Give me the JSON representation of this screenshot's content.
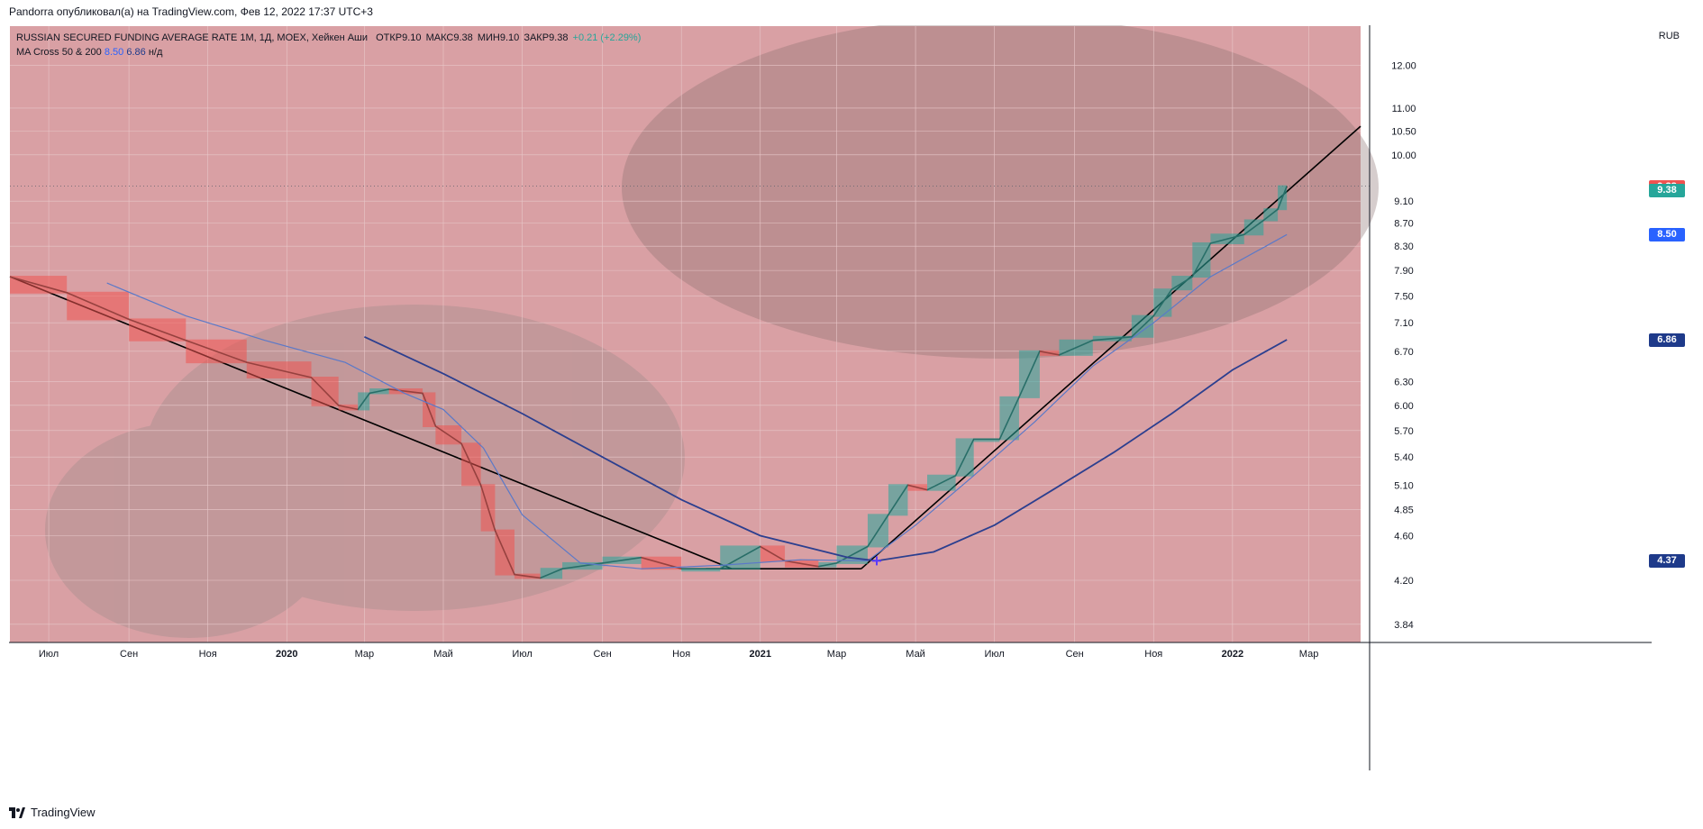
{
  "caption": "Pandorra опубликовал(а) на TradingView.com, Фев 12, 2022 17:37 UTC+3",
  "legend": {
    "symbol_line": "RUSSIAN SECURED FUNDING AVERAGE RATE 1M, 1Д, MOEX, Хейкен Аши",
    "open_label": "ОТКР",
    "open_value": "9.10",
    "high_label": "МАКС",
    "high_value": "9.38",
    "low_label": "МИН",
    "low_value": "9.10",
    "close_label": "ЗАКР",
    "close_value": "9.38",
    "change": "+0.21 (+2.29%)",
    "ma_name": "MA Cross 50 & 200",
    "ma_fast_value": "8.50",
    "ma_slow_value": "6.86",
    "ma_na": "н/д"
  },
  "axis_currency": "RUB",
  "price_tags": [
    {
      "label": "9.38",
      "value": 9.38,
      "color": "#ef5350"
    },
    {
      "label": "9.38",
      "value": 9.3,
      "color": "#26a69a"
    },
    {
      "label": "8.50",
      "value": 8.5,
      "color": "#2962ff"
    },
    {
      "label": "6.86",
      "value": 6.86,
      "color": "#1e3a8a"
    },
    {
      "label": "4.37",
      "value": 4.37,
      "color": "#1e3a8a"
    }
  ],
  "footer": "TradingView",
  "colors": {
    "background": "#d9a0a4",
    "up": "#26a69a",
    "down": "#ef5350",
    "ma_fast": "#5b79c8",
    "ma_slow": "#2c3f8f",
    "trendline": "#000000"
  },
  "chart_data": {
    "type": "line",
    "title": "RUSSIAN SECURED FUNDING AVERAGE RATE 1M",
    "ylabel": "RUB",
    "y_scale": "log",
    "ylim": [
      3.7,
      13.0
    ],
    "y_ticks": [
      "12.00",
      "11.00",
      "10.50",
      "10.00",
      "9.10",
      "8.70",
      "8.30",
      "7.90",
      "7.50",
      "7.10",
      "6.70",
      "6.30",
      "6.00",
      "5.70",
      "5.40",
      "5.10",
      "4.85",
      "4.60",
      "4.20",
      "3.84"
    ],
    "x_ticks": [
      "Июл",
      "Сен",
      "Ноя",
      "2020",
      "Мар",
      "Май",
      "Июл",
      "Сен",
      "Ноя",
      "2021",
      "Мар",
      "Май",
      "Июл",
      "Сен",
      "Ноя",
      "2022",
      "Мар"
    ],
    "x_range": [
      "2019-06-01",
      "2022-04-10"
    ],
    "series": [
      {
        "name": "Хейкен Аши",
        "x": [
          "2019-06-01",
          "2019-07-15",
          "2019-09-01",
          "2019-10-15",
          "2019-12-01",
          "2020-01-20",
          "2020-02-10",
          "2020-02-25",
          "2020-03-05",
          "2020-03-20",
          "2020-04-15",
          "2020-04-25",
          "2020-05-15",
          "2020-05-30",
          "2020-06-10",
          "2020-06-25",
          "2020-07-15",
          "2020-08-01",
          "2020-09-01",
          "2020-10-01",
          "2020-11-01",
          "2020-12-01",
          "2021-01-01",
          "2021-01-20",
          "2021-02-15",
          "2021-03-01",
          "2021-03-25",
          "2021-04-10",
          "2021-04-25",
          "2021-05-10",
          "2021-06-01",
          "2021-06-15",
          "2021-07-05",
          "2021-07-20",
          "2021-08-05",
          "2021-08-20",
          "2021-09-15",
          "2021-10-15",
          "2021-11-01",
          "2021-11-15",
          "2021-12-01",
          "2021-12-15",
          "2022-01-10",
          "2022-01-25",
          "2022-02-05",
          "2022-02-12"
        ],
        "values": [
          7.8,
          7.55,
          7.15,
          6.85,
          6.55,
          6.35,
          6.0,
          5.95,
          6.15,
          6.2,
          6.15,
          5.75,
          5.55,
          5.1,
          4.65,
          4.25,
          4.22,
          4.3,
          4.35,
          4.4,
          4.3,
          4.3,
          4.5,
          4.37,
          4.32,
          4.35,
          4.5,
          4.8,
          5.1,
          5.05,
          5.2,
          5.6,
          5.6,
          6.1,
          6.7,
          6.65,
          6.85,
          6.9,
          7.2,
          7.6,
          7.8,
          8.35,
          8.5,
          8.75,
          8.95,
          9.38
        ]
      },
      {
        "name": "MA Cross 50",
        "x": [
          "2019-08-15",
          "2019-10-15",
          "2019-12-15",
          "2020-02-15",
          "2020-04-01",
          "2020-05-01",
          "2020-06-01",
          "2020-07-01",
          "2020-08-15",
          "2020-10-01",
          "2020-12-01",
          "2021-02-01",
          "2021-03-25",
          "2021-05-01",
          "2021-06-15",
          "2021-08-01",
          "2021-09-15",
          "2021-11-01",
          "2021-12-15",
          "2022-02-12"
        ],
        "values": [
          7.7,
          7.2,
          6.85,
          6.55,
          6.15,
          5.95,
          5.5,
          4.8,
          4.35,
          4.3,
          4.33,
          4.38,
          4.37,
          4.7,
          5.2,
          5.8,
          6.5,
          7.1,
          7.8,
          8.5
        ]
      },
      {
        "name": "MA Cross 200",
        "x": [
          "2020-03-01",
          "2020-05-01",
          "2020-07-01",
          "2020-09-01",
          "2020-11-01",
          "2021-01-01",
          "2021-03-10",
          "2021-04-01",
          "2021-05-15",
          "2021-07-01",
          "2021-08-15",
          "2021-10-01",
          "2021-11-15",
          "2022-01-01",
          "2022-02-12"
        ],
        "values": [
          6.9,
          6.4,
          5.9,
          5.4,
          4.95,
          4.6,
          4.4,
          4.37,
          4.45,
          4.7,
          5.05,
          5.45,
          5.9,
          6.45,
          6.86
        ]
      }
    ],
    "trendlines": [
      {
        "from": [
          "2019-06-01",
          7.8
        ],
        "to": [
          "2020-12-10",
          4.3
        ]
      },
      {
        "from": [
          "2020-11-20",
          4.3
        ],
        "to": [
          "2021-03-20",
          4.3
        ]
      },
      {
        "from": [
          "2021-03-20",
          4.3
        ],
        "to": [
          "2022-04-10",
          10.6
        ]
      }
    ],
    "grid": true
  }
}
